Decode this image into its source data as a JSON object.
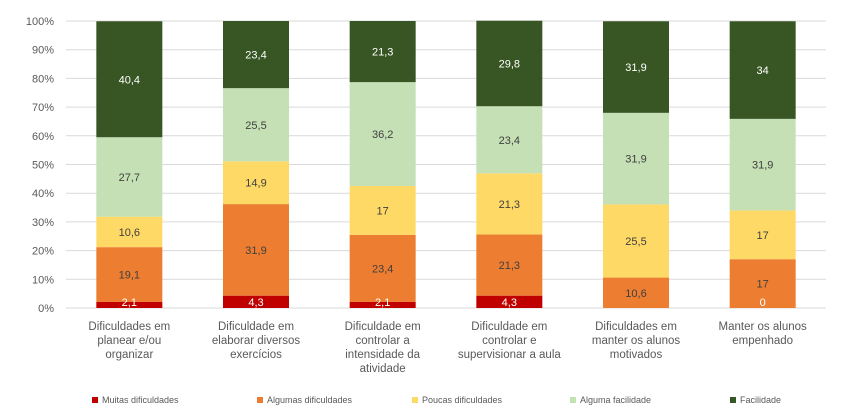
{
  "chart_data": {
    "type": "bar",
    "stacked": true,
    "percent": true,
    "title": "",
    "xlabel": "",
    "ylabel": "",
    "ylim": [
      0,
      100
    ],
    "y_ticks": [
      "0%",
      "10%",
      "20%",
      "30%",
      "40%",
      "50%",
      "60%",
      "70%",
      "80%",
      "90%",
      "100%"
    ],
    "grid": true,
    "legend_position": "bottom",
    "categories": [
      [
        "Dificuldades em",
        "planear e/ou",
        "organizar"
      ],
      [
        "Dificuldade em",
        "elaborar diversos",
        "exercícios"
      ],
      [
        "Dificuldade em",
        "controlar a",
        "intensidade da",
        "atividade"
      ],
      [
        "Dificuldade em",
        "controlar e",
        "supervisionar a aula"
      ],
      [
        "Dificuldades em",
        "manter os alunos",
        "motivados"
      ],
      [
        "Manter os alunos",
        "empenhado"
      ]
    ],
    "series": [
      {
        "name": "Muitas dificuldades",
        "color": "#c00000",
        "values": [
          2.1,
          4.3,
          2.1,
          4.3,
          0,
          0
        ],
        "labels": [
          "2,1",
          "4,3",
          "2,1",
          "4,3",
          "",
          "0"
        ]
      },
      {
        "name": "Algumas dificuldades",
        "color": "#ed7d31",
        "values": [
          19.1,
          31.9,
          23.4,
          21.3,
          10.6,
          17
        ],
        "labels": [
          "19,1",
          "31,9",
          "23,4",
          "21,3",
          "10,6",
          "17"
        ]
      },
      {
        "name": "Poucas dificuldades",
        "color": "#ffd966",
        "values": [
          10.6,
          14.9,
          17,
          21.3,
          25.5,
          17
        ],
        "labels": [
          "10,6",
          "14,9",
          "17",
          "21,3",
          "25,5",
          "17"
        ]
      },
      {
        "name": "Alguma facilidade",
        "color": "#c5e0b4",
        "values": [
          27.7,
          25.5,
          36.2,
          23.4,
          31.9,
          31.9
        ],
        "labels": [
          "27,7",
          "25,5",
          "36,2",
          "23,4",
          "31,9",
          "31,9"
        ]
      },
      {
        "name": "Facilidade",
        "color": "#375623",
        "values": [
          40.4,
          23.4,
          21.3,
          29.8,
          31.9,
          34
        ],
        "labels": [
          "40,4",
          "23,4",
          "21,3",
          "29,8",
          "31,9",
          "34"
        ]
      }
    ]
  }
}
